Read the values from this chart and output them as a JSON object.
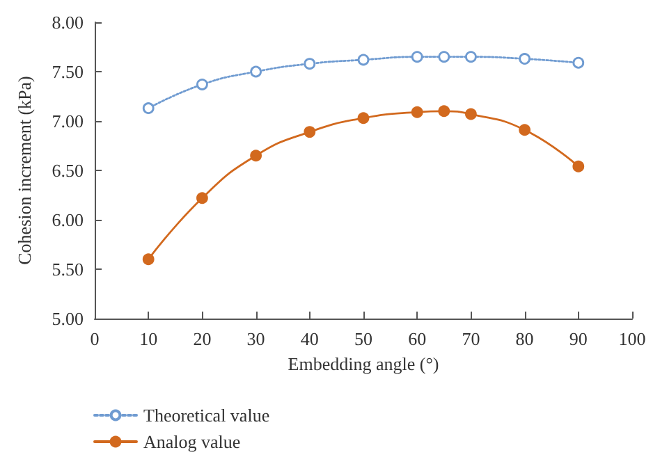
{
  "chart_data": {
    "type": "line",
    "xlabel": "Embedding angle (°)",
    "ylabel": "Cohesion increment (kPa)",
    "xlim": [
      0,
      100
    ],
    "xticks": [
      0,
      10,
      20,
      30,
      40,
      50,
      60,
      70,
      80,
      90,
      100
    ],
    "ylim": [
      5,
      8
    ],
    "yticks": [
      {
        "value": 5,
        "label": "5.00"
      },
      {
        "value": 5.5,
        "label": "5.50"
      },
      {
        "value": 6,
        "label": "6.00"
      },
      {
        "value": 6.5,
        "label": "6.50"
      },
      {
        "value": 7,
        "label": "7.00"
      },
      {
        "value": 7.5,
        "label": "7.50"
      },
      {
        "value": 8,
        "label": "8.00"
      }
    ],
    "x": [
      10,
      20,
      30,
      40,
      50,
      60,
      65,
      70,
      80,
      90
    ],
    "series": [
      {
        "name": "Theoretical value",
        "color": "#6f9bd1",
        "marker": "circle",
        "line_style": "dotted",
        "values": [
          7.13,
          7.37,
          7.5,
          7.58,
          7.62,
          7.65,
          7.65,
          7.65,
          7.63,
          7.59
        ]
      },
      {
        "name": "Analog value",
        "color": "#d2691e",
        "marker": "circle",
        "line_style": "solid",
        "values": [
          5.6,
          6.22,
          6.65,
          6.89,
          7.03,
          7.09,
          7.1,
          7.07,
          6.91,
          6.54
        ]
      }
    ],
    "grid": false,
    "legend": "bottom left"
  }
}
